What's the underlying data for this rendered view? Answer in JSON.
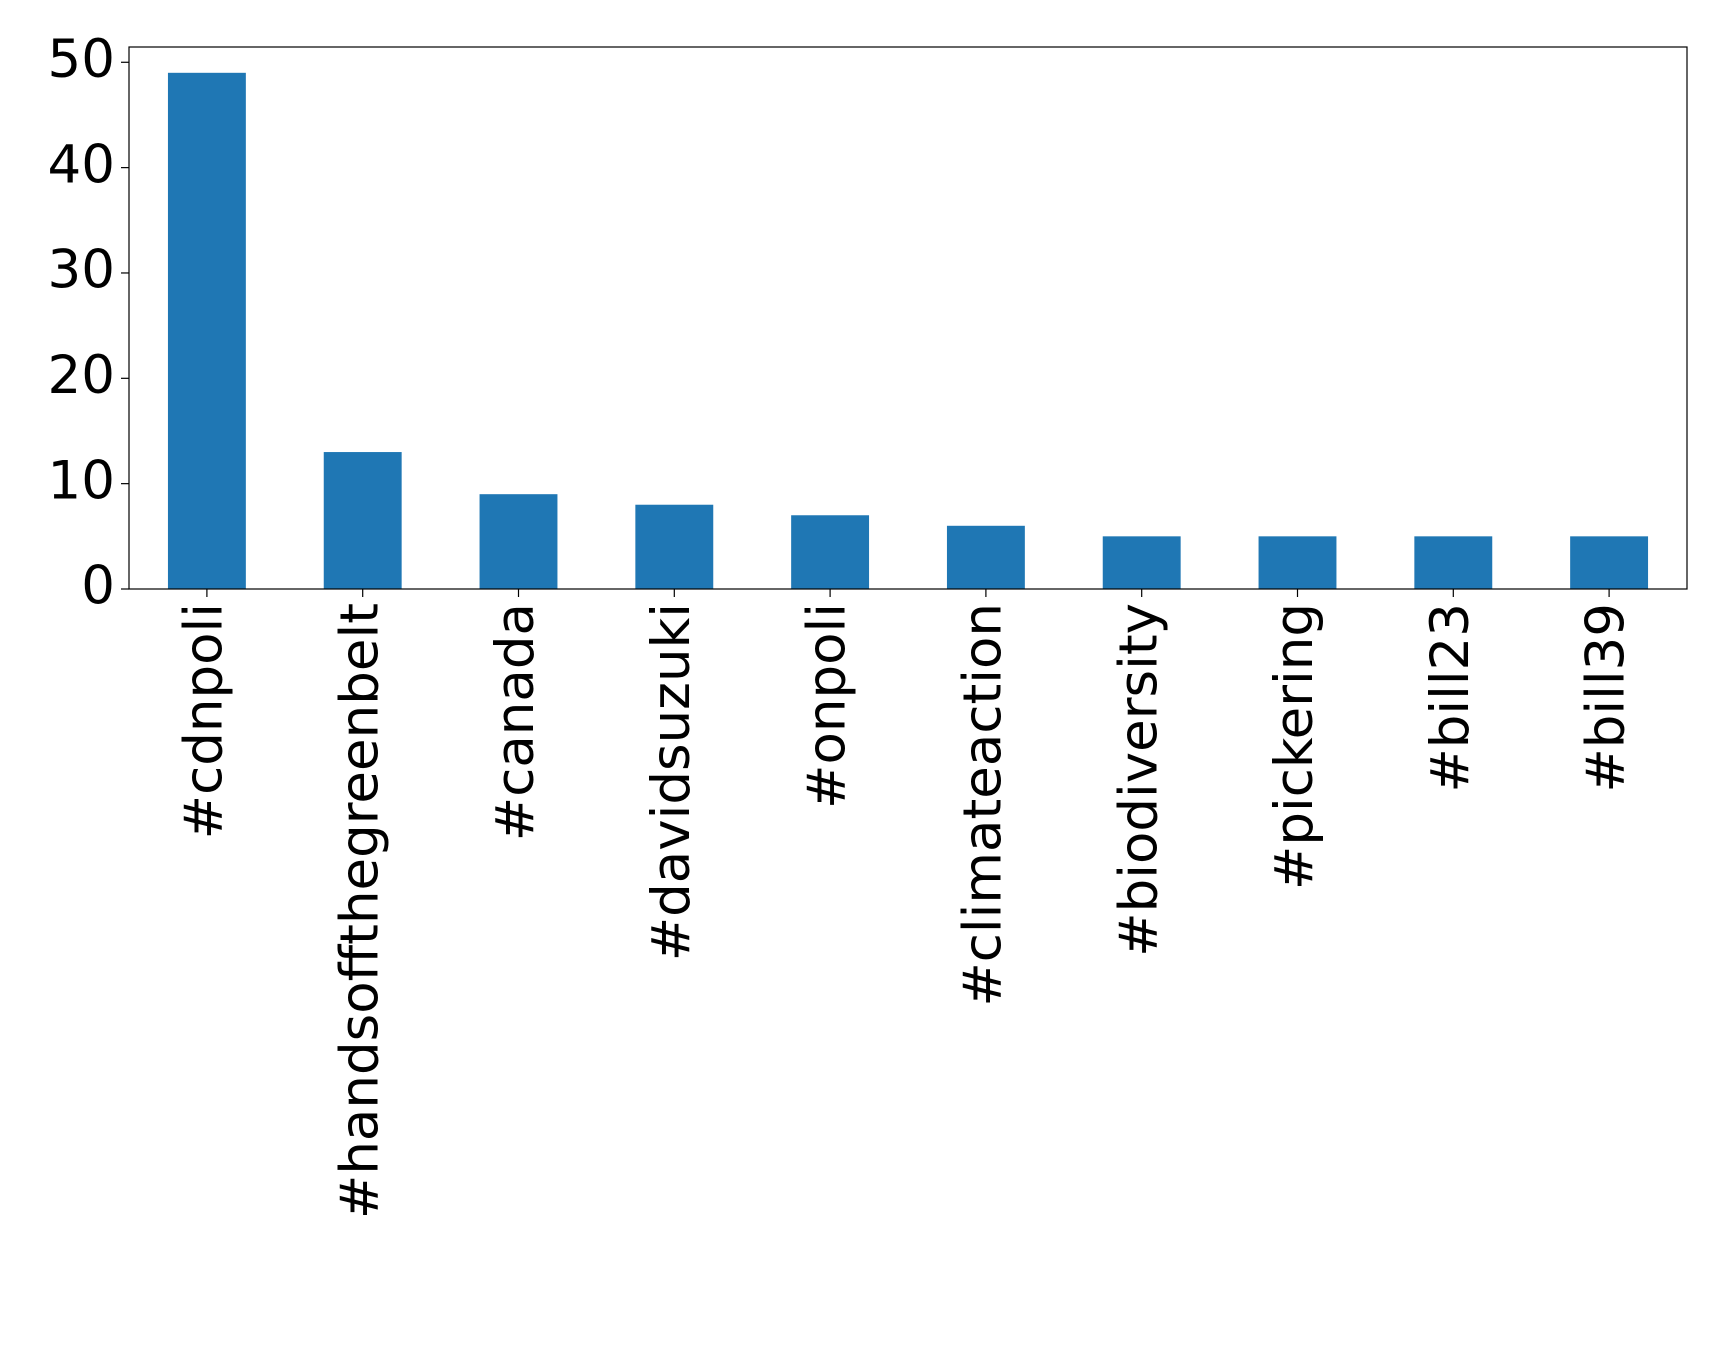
{
  "chart_data": {
    "type": "bar",
    "categories": [
      "#cdnpoli",
      "#handsoffthegreenbelt",
      "#canada",
      "#davidsuzuki",
      "#onpoli",
      "#climateaction",
      "#biodiversity",
      "#pickering",
      "#bill23",
      "#bill39"
    ],
    "values": [
      49,
      13,
      9,
      8,
      7,
      6,
      5,
      5,
      5,
      5
    ],
    "color": "#1f77b4",
    "ylim": [
      0,
      51.45
    ],
    "yticks": [
      0,
      10,
      20,
      30,
      40,
      50
    ],
    "grid": false
  }
}
